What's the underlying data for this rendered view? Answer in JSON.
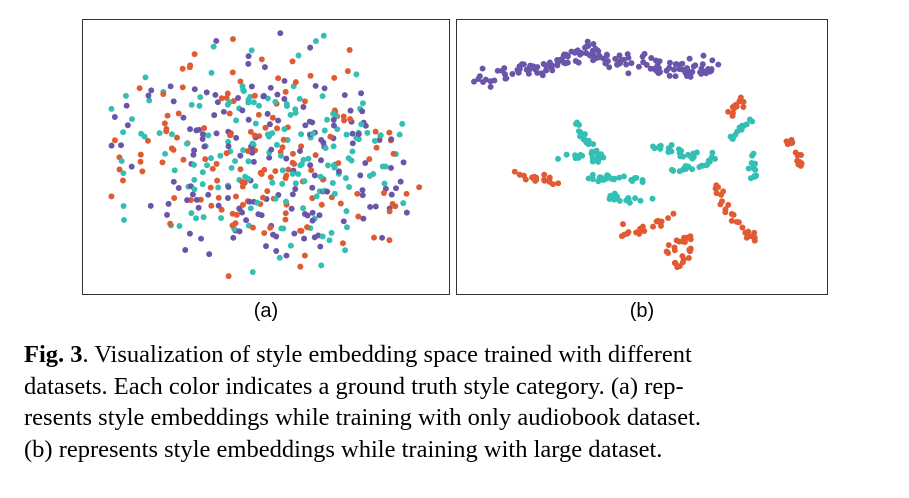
{
  "figure": {
    "panels": [
      {
        "id": "a",
        "label": "(a)"
      },
      {
        "id": "b",
        "label": "(b)"
      }
    ],
    "colors": {
      "purple": "#6a55aa",
      "teal": "#33bfb3",
      "orange": "#e05a33"
    }
  },
  "caption": {
    "fig_label": "Fig. 3",
    "line1_rest": ". Visualization of style embedding space trained with different",
    "line2": "datasets. Each color indicates a ground truth style category. (a) rep-",
    "line3": "resents style embeddings while training with only audiobook dataset.",
    "line4": "(b) represents style embeddings while training with large dataset."
  }
}
